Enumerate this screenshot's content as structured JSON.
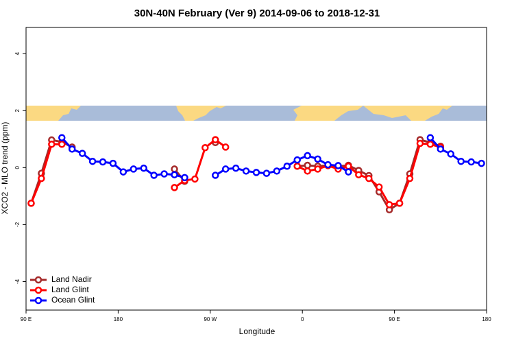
{
  "chart_data": {
    "type": "line",
    "title": "30N-40N February (Ver 9)   2014-09-06 to 2018-12-31",
    "xlabel": "Longitude",
    "ylabel": "XCO2 - MLO trend (ppm)",
    "x": [
      95,
      105,
      115,
      125,
      135,
      145,
      155,
      165,
      175,
      185,
      195,
      205,
      215,
      225,
      235,
      245,
      255,
      265,
      275,
      285,
      295,
      305,
      315,
      325,
      335,
      345,
      355,
      365,
      375,
      385,
      395,
      405,
      415,
      425,
      435,
      445,
      455,
      465,
      475,
      485,
      495,
      505,
      515,
      525,
      535
    ],
    "xlim": [
      90,
      540
    ],
    "xticks": [
      {
        "value": 90,
        "label": "90 E"
      },
      180,
      {
        "value": 270,
        "label": "90 W"
      },
      {
        "value": 360,
        "label": "0"
      },
      {
        "value": 450,
        "label": "90 E"
      },
      {
        "value": 540,
        "label": "180"
      }
    ],
    "ylim": [
      -5,
      4.92
    ],
    "yticks": [
      -4,
      -2,
      0,
      2,
      4
    ],
    "legend": "bottom-left",
    "series": [
      {
        "name": "Land Nadir",
        "color": "#a52a2a",
        "values": [
          -1.25,
          -0.2,
          0.97,
          0.9,
          0.72,
          null,
          null,
          null,
          null,
          null,
          null,
          null,
          null,
          null,
          -0.05,
          -0.48,
          null,
          null,
          0.88,
          null,
          null,
          null,
          null,
          null,
          null,
          null,
          0.05,
          0.08,
          0.05,
          0.08,
          0.05,
          0.08,
          -0.1,
          -0.28,
          -0.85,
          -1.48,
          -1.25,
          -0.22,
          0.98,
          0.88,
          0.75,
          null,
          null,
          null,
          null
        ]
      },
      {
        "name": "Land Glint",
        "color": "#ff0000",
        "values": [
          -1.25,
          -0.38,
          0.82,
          0.82,
          null,
          null,
          null,
          null,
          null,
          null,
          null,
          null,
          null,
          null,
          -0.7,
          -0.45,
          -0.4,
          0.7,
          0.98,
          0.72,
          null,
          null,
          null,
          null,
          null,
          null,
          0.05,
          -0.12,
          -0.05,
          0.07,
          -0.05,
          0.05,
          -0.25,
          -0.38,
          -0.68,
          -1.3,
          -1.25,
          -0.38,
          0.85,
          0.82,
          0.72,
          null,
          null,
          null,
          null
        ]
      },
      {
        "name": "Ocean Glint",
        "color": "#0000ff",
        "values": [
          null,
          null,
          null,
          1.05,
          0.65,
          0.5,
          0.22,
          0.2,
          0.15,
          -0.15,
          -0.05,
          -0.02,
          -0.27,
          -0.22,
          -0.25,
          -0.35,
          null,
          null,
          -0.27,
          -0.05,
          -0.02,
          -0.12,
          -0.17,
          -0.2,
          -0.12,
          0.05,
          0.27,
          0.42,
          0.3,
          0.1,
          0.07,
          -0.15,
          null,
          null,
          null,
          null,
          null,
          null,
          null,
          1.05,
          0.65,
          0.48,
          0.22,
          0.2,
          0.15
        ]
      }
    ]
  }
}
